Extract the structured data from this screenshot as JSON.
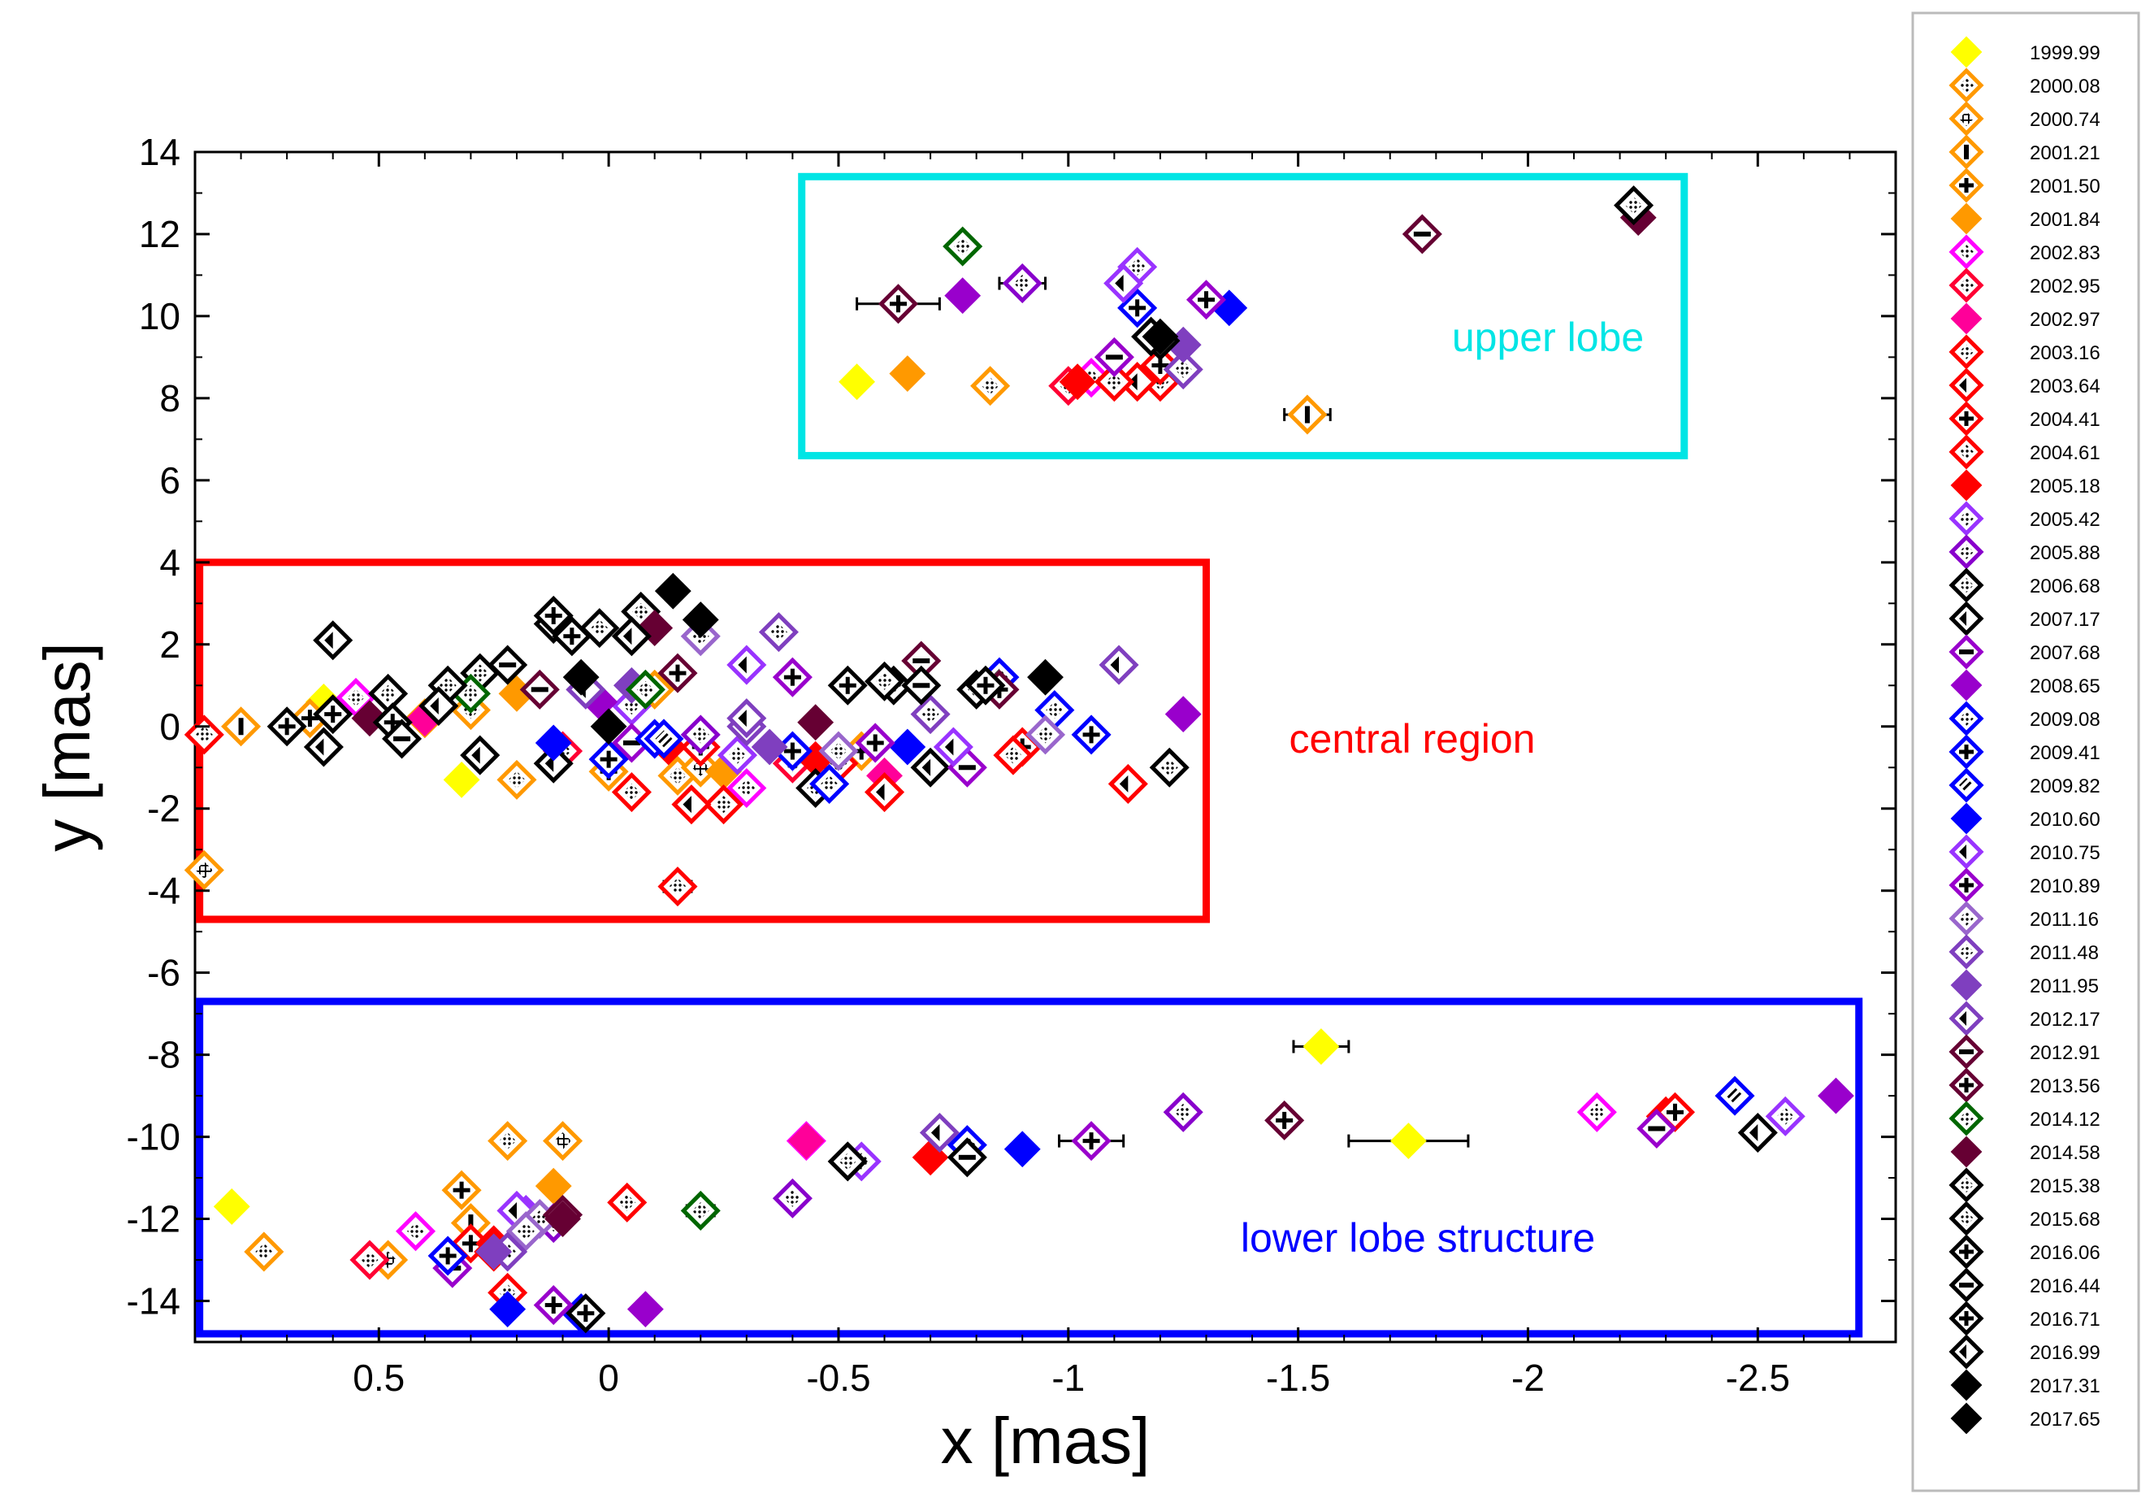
{
  "chart_data": {
    "type": "scatter",
    "title": "",
    "xlabel": "x [mas]",
    "ylabel": "y [mas]",
    "xlim": [
      0.9,
      -2.8
    ],
    "ylim": [
      -15,
      14
    ],
    "x_reversed": true,
    "x_ticks": [
      0.5,
      0,
      -0.5,
      -1,
      -1.5,
      -2,
      -2.5
    ],
    "x_tick_labels": [
      "0.5",
      "0",
      "-0.5",
      "-1",
      "-1.5",
      "-2",
      "-2.5"
    ],
    "y_ticks": [
      14,
      12,
      10,
      8,
      6,
      4,
      2,
      0,
      -2,
      -4,
      -6,
      -8,
      -10,
      -12,
      -14
    ],
    "y_tick_labels": [
      "14",
      "12",
      "10",
      "8",
      "6",
      "4",
      "2",
      "0",
      "-2",
      "-4",
      "-6",
      "-8",
      "-10",
      "-12",
      "-14"
    ],
    "grid": false,
    "legend_position": "right, outside plot",
    "series": [
      {
        "name": "1999.99",
        "color": "#ffff00",
        "fill": "solid",
        "points": [
          [
            0.82,
            -11.7
          ],
          [
            -0.54,
            8.4
          ],
          [
            0.32,
            -1.3
          ],
          [
            -1.55,
            -7.8
          ],
          [
            -1.74,
            -10.1
          ],
          [
            0.62,
            0.6
          ]
        ]
      },
      {
        "name": "2000.08",
        "color": "#ff9900",
        "fill": "dots",
        "points": [
          [
            0.75,
            -12.8
          ],
          [
            0.2,
            -1.3
          ],
          [
            0.22,
            -10.1
          ],
          [
            -0.83,
            8.3
          ],
          [
            0.3,
            0.4
          ],
          [
            -0.15,
            -1.2
          ]
        ]
      },
      {
        "name": "2000.74",
        "color": "#ff9900",
        "fill": "grid",
        "points": [
          [
            0.1,
            -10.1
          ],
          [
            0.48,
            -13.0
          ],
          [
            0.88,
            -3.5
          ],
          [
            0.4,
            0.2
          ],
          [
            -0.2,
            -1.0
          ]
        ]
      },
      {
        "name": "2001.21",
        "color": "#ff9900",
        "fill": "vstripe",
        "points": [
          [
            -1.52,
            7.6
          ],
          [
            0.3,
            -12.1
          ],
          [
            -0.1,
            0.9
          ],
          [
            0.8,
            0.0
          ]
        ]
      },
      {
        "name": "2001.50",
        "color": "#ff9900",
        "fill": "cross",
        "points": [
          [
            0.32,
            -11.3
          ],
          [
            0.0,
            -1.1
          ],
          [
            -0.55,
            -0.6
          ],
          [
            0.65,
            0.2
          ]
        ]
      },
      {
        "name": "2001.84",
        "color": "#ff9900",
        "fill": "solid",
        "points": [
          [
            0.12,
            -11.2
          ],
          [
            -0.65,
            8.6
          ],
          [
            -0.25,
            -1.1
          ],
          [
            0.2,
            0.8
          ]
        ]
      },
      {
        "name": "2002.83",
        "color": "#ff00ff",
        "fill": "dots",
        "points": [
          [
            -0.43,
            -10.1
          ],
          [
            -2.15,
            -9.4
          ],
          [
            0.42,
            -12.3
          ],
          [
            -0.3,
            -1.5
          ],
          [
            -1.05,
            8.5
          ],
          [
            0.55,
            0.7
          ]
        ]
      },
      {
        "name": "2002.95",
        "color": "#ff0033",
        "fill": "dots",
        "points": [
          [
            0.52,
            -13.0
          ],
          [
            -1.0,
            8.3
          ],
          [
            -0.4,
            -0.9
          ],
          [
            0.1,
            -0.6
          ]
        ]
      },
      {
        "name": "2002.97",
        "color": "#ff0099",
        "fill": "solid",
        "points": [
          [
            -0.43,
            -10.1
          ],
          [
            -0.6,
            -1.2
          ],
          [
            0.4,
            0.2
          ]
        ]
      },
      {
        "name": "2003.16",
        "color": "#ff0000",
        "fill": "dots",
        "points": [
          [
            -0.04,
            -11.6
          ],
          [
            -0.15,
            -3.9
          ],
          [
            0.22,
            -13.8
          ],
          [
            0.88,
            -0.2
          ],
          [
            -0.25,
            -1.9
          ],
          [
            -1.2,
            8.4
          ],
          [
            -2.3,
            -9.5
          ]
        ]
      },
      {
        "name": "2003.64",
        "color": "#ff0000",
        "fill": "half",
        "points": [
          [
            -1.13,
            -1.4
          ],
          [
            -0.6,
            -1.6
          ],
          [
            -0.18,
            -1.9
          ],
          [
            -1.15,
            8.4
          ]
        ]
      },
      {
        "name": "2004.41",
        "color": "#ff0000",
        "fill": "cross",
        "points": [
          [
            0.3,
            -12.6
          ],
          [
            -2.32,
            -9.4
          ],
          [
            -0.9,
            -0.5
          ],
          [
            -0.2,
            -0.5
          ],
          [
            -1.2,
            8.8
          ]
        ]
      },
      {
        "name": "2004.61",
        "color": "#ff0000",
        "fill": "dots",
        "points": [
          [
            -0.05,
            -1.6
          ],
          [
            -0.88,
            -0.7
          ],
          [
            0.25,
            -12.8
          ],
          [
            -0.5,
            -0.9
          ],
          [
            -1.1,
            8.4
          ]
        ]
      },
      {
        "name": "2005.18",
        "color": "#ff0000",
        "fill": "solid",
        "points": [
          [
            -0.7,
            -10.5
          ],
          [
            -0.13,
            -0.5
          ],
          [
            -0.45,
            -0.8
          ],
          [
            0.25,
            -12.6
          ],
          [
            -1.02,
            8.4
          ]
        ]
      },
      {
        "name": "2005.42",
        "color": "#9933ff",
        "fill": "dots",
        "points": [
          [
            0.18,
            -11.9
          ],
          [
            -0.55,
            -10.6
          ],
          [
            -1.15,
            11.2
          ],
          [
            -0.28,
            -0.7
          ],
          [
            -2.56,
            -9.5
          ],
          [
            -0.05,
            0.5
          ]
        ]
      },
      {
        "name": "2005.88",
        "color": "#8800cc",
        "fill": "dots",
        "points": [
          [
            -0.4,
            -11.5
          ],
          [
            -1.25,
            -9.4
          ],
          [
            -0.2,
            -0.2
          ],
          [
            0.12,
            -12.1
          ],
          [
            -0.9,
            10.8
          ]
        ]
      },
      {
        "name": "2006.68",
        "color": "#000000",
        "fill": "dots",
        "points": [
          [
            -0.52,
            -10.6
          ],
          [
            -0.45,
            -1.5
          ],
          [
            -0.8,
            0.9
          ],
          [
            0.28,
            1.3
          ],
          [
            -0.07,
            2.8
          ]
        ]
      },
      {
        "name": "2007.17",
        "color": "#000000",
        "fill": "half",
        "points": [
          [
            -2.5,
            -9.9
          ],
          [
            0.28,
            -0.7
          ],
          [
            0.12,
            -0.9
          ],
          [
            -0.7,
            -1.0
          ],
          [
            0.6,
            2.1
          ]
        ]
      },
      {
        "name": "2007.68",
        "color": "#9900cc",
        "fill": "hstripe",
        "points": [
          [
            -2.28,
            -9.8
          ],
          [
            -0.05,
            -0.4
          ],
          [
            -0.78,
            -1.0
          ],
          [
            0.34,
            -13.2
          ],
          [
            -1.1,
            9.0
          ]
        ]
      },
      {
        "name": "2008.65",
        "color": "#9900cc",
        "fill": "solid",
        "points": [
          [
            -0.08,
            -14.2
          ],
          [
            -1.25,
            0.3
          ],
          [
            -2.67,
            -9.0
          ],
          [
            0.02,
            0.6
          ],
          [
            -0.77,
            10.5
          ]
        ]
      },
      {
        "name": "2009.08",
        "color": "#0000ff",
        "fill": "dots",
        "points": [
          [
            0.06,
            -14.3
          ],
          [
            -0.97,
            0.4
          ],
          [
            -0.1,
            -0.3
          ],
          [
            -0.48,
            -1.4
          ]
        ]
      },
      {
        "name": "2009.41",
        "color": "#0000ff",
        "fill": "cross",
        "points": [
          [
            0.35,
            -12.9
          ],
          [
            -1.05,
            -0.2
          ],
          [
            -1.15,
            10.2
          ],
          [
            -0.4,
            -0.6
          ],
          [
            0.0,
            -0.8
          ]
        ]
      },
      {
        "name": "2009.82",
        "color": "#0000ff",
        "fill": "stripe",
        "points": [
          [
            -0.78,
            -10.2
          ],
          [
            -2.45,
            -9.0
          ],
          [
            -0.85,
            1.2
          ],
          [
            -0.12,
            -0.3
          ]
        ]
      },
      {
        "name": "2010.60",
        "color": "#0000ff",
        "fill": "solid",
        "points": [
          [
            0.22,
            -14.2
          ],
          [
            -0.9,
            -10.3
          ],
          [
            -1.35,
            10.2
          ],
          [
            0.12,
            -0.4
          ],
          [
            -0.65,
            -0.5
          ]
        ]
      },
      {
        "name": "2010.75",
        "color": "#9933ff",
        "fill": "half",
        "points": [
          [
            -0.75,
            -0.5
          ],
          [
            -0.3,
            1.5
          ],
          [
            0.2,
            -11.8
          ],
          [
            -1.12,
            10.8
          ]
        ]
      },
      {
        "name": "2010.89",
        "color": "#9900cc",
        "fill": "cross",
        "points": [
          [
            -1.05,
            -10.1
          ],
          [
            0.12,
            -14.1
          ],
          [
            -0.58,
            -0.4
          ],
          [
            -1.3,
            10.4
          ],
          [
            -0.4,
            1.2
          ]
        ]
      },
      {
        "name": "2011.16",
        "color": "#9966cc",
        "fill": "dots",
        "points": [
          [
            0.15,
            -12.0
          ],
          [
            0.18,
            -12.3
          ],
          [
            -0.95,
            -0.2
          ],
          [
            -0.2,
            2.2
          ],
          [
            -0.5,
            -0.6
          ]
        ]
      },
      {
        "name": "2011.48",
        "color": "#7f3fbf",
        "fill": "dots",
        "points": [
          [
            -1.25,
            8.7
          ],
          [
            0.22,
            -12.8
          ],
          [
            -0.3,
            0.0
          ],
          [
            -0.7,
            0.3
          ],
          [
            -0.37,
            2.3
          ]
        ]
      },
      {
        "name": "2011.95",
        "color": "#7f3fbf",
        "fill": "solid",
        "points": [
          [
            0.25,
            -12.8
          ],
          [
            -0.35,
            -0.5
          ],
          [
            -1.25,
            9.3
          ],
          [
            -0.05,
            1.0
          ]
        ]
      },
      {
        "name": "2012.17",
        "color": "#7f3fbf",
        "fill": "half",
        "points": [
          [
            -0.72,
            -9.9
          ],
          [
            -0.3,
            0.2
          ],
          [
            -1.11,
            1.5
          ],
          [
            0.05,
            0.9
          ]
        ]
      },
      {
        "name": "2012.91",
        "color": "#660033",
        "fill": "hstripe",
        "points": [
          [
            -1.77,
            12.0
          ],
          [
            -0.68,
            1.6
          ],
          [
            0.15,
            0.9
          ]
        ]
      },
      {
        "name": "2013.56",
        "color": "#660033",
        "fill": "cross",
        "points": [
          [
            -0.63,
            10.3
          ],
          [
            -1.47,
            -9.6
          ],
          [
            0.1,
            -11.9
          ],
          [
            -0.15,
            1.3
          ],
          [
            -0.85,
            0.9
          ]
        ]
      },
      {
        "name": "2014.12",
        "color": "#006600",
        "fill": "dots",
        "points": [
          [
            -0.77,
            11.7
          ],
          [
            -0.2,
            -11.8
          ],
          [
            -0.08,
            0.9
          ],
          [
            0.3,
            0.8
          ]
        ]
      },
      {
        "name": "2014.58",
        "color": "#660033",
        "fill": "solid",
        "points": [
          [
            -2.24,
            12.4
          ],
          [
            -0.45,
            0.1
          ],
          [
            -0.1,
            2.4
          ],
          [
            0.1,
            -12.0
          ],
          [
            0.52,
            0.2
          ]
        ]
      },
      {
        "name": "2015.38",
        "color": "#000000",
        "fill": "dots",
        "points": [
          [
            -2.23,
            12.7
          ],
          [
            -0.52,
            -10.6
          ],
          [
            0.02,
            2.4
          ],
          [
            -0.62,
            1.0
          ],
          [
            0.35,
            1.0
          ]
        ]
      },
      {
        "name": "2015.68",
        "color": "#000000",
        "fill": "dots",
        "points": [
          [
            -1.2,
            9.4
          ],
          [
            -0.6,
            1.1
          ],
          [
            0.12,
            2.5
          ],
          [
            0.48,
            0.8
          ],
          [
            -1.22,
            -1.0
          ]
        ]
      },
      {
        "name": "2016.06",
        "color": "#000000",
        "fill": "cross",
        "points": [
          [
            -0.52,
            1.0
          ],
          [
            0.08,
            2.2
          ],
          [
            0.47,
            0.1
          ],
          [
            0.7,
            0.0
          ]
        ]
      },
      {
        "name": "2016.44",
        "color": "#000000",
        "fill": "hstripe",
        "points": [
          [
            -0.78,
            -10.5
          ],
          [
            -0.68,
            1.0
          ],
          [
            0.45,
            -0.3
          ],
          [
            0.22,
            1.5
          ]
        ]
      },
      {
        "name": "2016.71",
        "color": "#000000",
        "fill": "cross",
        "points": [
          [
            0.05,
            -14.3
          ],
          [
            0.12,
            2.7
          ],
          [
            -0.82,
            1.0
          ],
          [
            0.6,
            0.3
          ]
        ]
      },
      {
        "name": "2016.99",
        "color": "#000000",
        "fill": "half",
        "points": [
          [
            -1.18,
            9.5
          ],
          [
            0.62,
            -0.5
          ],
          [
            0.37,
            0.5
          ],
          [
            -0.05,
            2.2
          ]
        ]
      },
      {
        "name": "2017.31",
        "color": "#000000",
        "fill": "solid",
        "points": [
          [
            0.06,
            1.2
          ],
          [
            -0.95,
            1.2
          ],
          [
            0.0,
            0.0
          ],
          [
            -0.2,
            2.6
          ]
        ]
      },
      {
        "name": "2017.65",
        "color": "#000000",
        "fill": "solid",
        "points": [
          [
            -0.14,
            3.3
          ],
          [
            -1.2,
            9.5
          ]
        ]
      }
    ],
    "error_bars": [
      {
        "x": -0.63,
        "y": 10.3,
        "xerr": 0.09
      },
      {
        "x": -0.9,
        "y": 10.8,
        "xerr": 0.05
      },
      {
        "x": -1.52,
        "y": 7.6,
        "xerr": 0.05
      },
      {
        "x": -0.15,
        "y": -3.9,
        "xerr": 0.03
      },
      {
        "x": -1.55,
        "y": -7.8,
        "xerr": 0.06
      },
      {
        "x": -1.74,
        "y": -10.1,
        "xerr": 0.13
      },
      {
        "x": -1.05,
        "y": -10.1,
        "xerr": 0.07
      },
      {
        "x": -0.77,
        "y": 11.7,
        "xerr": 0.02
      },
      {
        "x": -0.2,
        "y": -11.8,
        "xerr": 0.03
      }
    ],
    "regions": [
      {
        "label": "upper lobe",
        "color": "#00e5e5",
        "x_range": [
          -0.42,
          -2.34
        ],
        "y_range": [
          6.6,
          13.4
        ]
      },
      {
        "label": "central region",
        "color": "#ff0000",
        "x_range": [
          0.89,
          -1.3
        ],
        "y_range": [
          -4.7,
          4.0
        ]
      },
      {
        "label": "lower lobe structure",
        "color": "#0000ff",
        "x_range": [
          0.89,
          -2.72
        ],
        "y_range": [
          -14.8,
          -6.7
        ]
      }
    ]
  }
}
